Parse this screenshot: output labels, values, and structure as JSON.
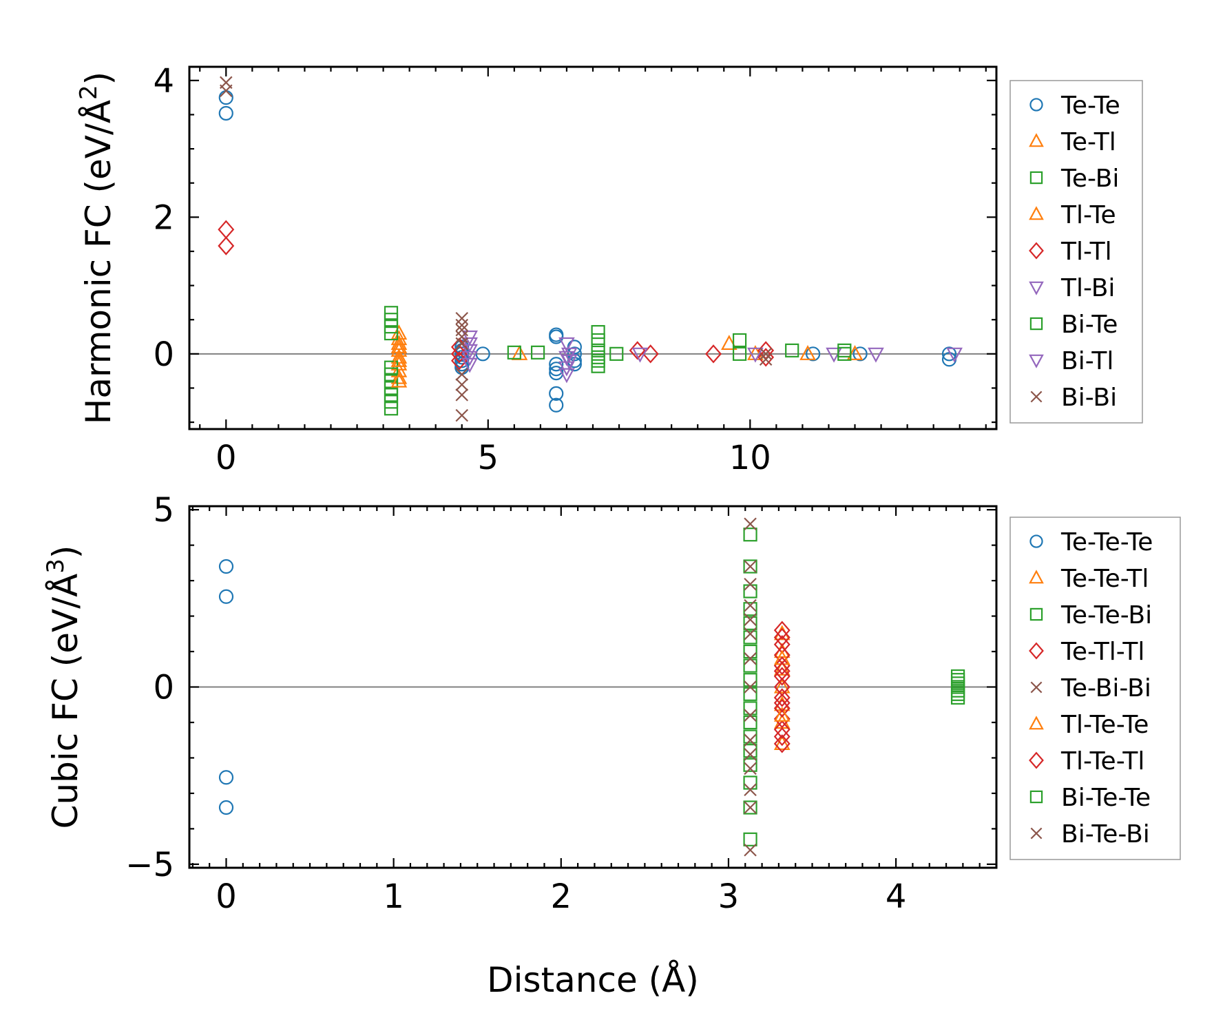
{
  "chart_data": [
    {
      "type": "scatter",
      "title": "",
      "xlabel": "",
      "ylabel": "Harmonic FC (eV/Å²)",
      "ylabel_main": "Harmonic FC (eV/Å",
      "ylabel_sup": "2",
      "ylabel_close": ")",
      "xlim": [
        -0.7,
        14.7
      ],
      "ylim": [
        -1.1,
        4.2
      ],
      "xticks": [
        0,
        5,
        10
      ],
      "xtick_labels": [
        "0",
        "5",
        "10"
      ],
      "yticks": [
        0,
        2,
        4
      ],
      "ytick_labels": [
        "0",
        "2",
        "4"
      ],
      "hline_y": 0,
      "legend_position": "outside-right",
      "legend": [
        {
          "label": "Te-Te",
          "marker": "circle",
          "color": "#1f77b4"
        },
        {
          "label": "Te-Tl",
          "marker": "triangle-up",
          "color": "#ff7f0e"
        },
        {
          "label": "Te-Bi",
          "marker": "square",
          "color": "#2ca02c"
        },
        {
          "label": "Tl-Te",
          "marker": "triangle-up",
          "color": "#ff7f0e"
        },
        {
          "label": "Tl-Tl",
          "marker": "diamond",
          "color": "#d62728"
        },
        {
          "label": "Tl-Bi",
          "marker": "triangle-down",
          "color": "#9467bd"
        },
        {
          "label": "Bi-Te",
          "marker": "square",
          "color": "#2ca02c"
        },
        {
          "label": "Bi-Tl",
          "marker": "triangle-down",
          "color": "#9467bd"
        },
        {
          "label": "Bi-Bi",
          "marker": "x",
          "color": "#8c564b"
        }
      ],
      "series": [
        {
          "name": "Te-Te",
          "marker": "circle",
          "color": "#1f77b4",
          "points": [
            [
              0,
              3.75
            ],
            [
              0,
              3.52
            ],
            [
              4.5,
              0.1
            ],
            [
              4.5,
              0.05
            ],
            [
              4.5,
              0.0
            ],
            [
              4.5,
              -0.05
            ],
            [
              4.5,
              -0.1
            ],
            [
              4.5,
              -0.15
            ],
            [
              4.5,
              -0.2
            ],
            [
              4.9,
              0.0
            ],
            [
              6.3,
              0.28
            ],
            [
              6.3,
              0.25
            ],
            [
              6.3,
              -0.15
            ],
            [
              6.3,
              -0.22
            ],
            [
              6.3,
              -0.28
            ],
            [
              6.3,
              -0.58
            ],
            [
              6.3,
              -0.75
            ],
            [
              6.65,
              0.1
            ],
            [
              6.65,
              0.0
            ],
            [
              6.65,
              -0.1
            ],
            [
              6.65,
              -0.15
            ],
            [
              11.2,
              0.0
            ],
            [
              12.1,
              0.0
            ],
            [
              13.8,
              0.0
            ],
            [
              13.8,
              -0.08
            ]
          ]
        },
        {
          "name": "Te-Tl",
          "marker": "triangle-up",
          "color": "#ff7f0e",
          "points": [
            [
              3.3,
              0.3
            ],
            [
              3.3,
              0.22
            ],
            [
              3.3,
              0.15
            ],
            [
              3.3,
              0.05
            ],
            [
              3.3,
              -0.05
            ],
            [
              3.3,
              -0.15
            ],
            [
              3.3,
              -0.25
            ],
            [
              3.3,
              -0.35
            ],
            [
              5.6,
              0.0
            ],
            [
              9.6,
              0.15
            ],
            [
              10.1,
              0.0
            ],
            [
              11.1,
              0.0
            ],
            [
              12.0,
              0.0
            ]
          ]
        },
        {
          "name": "Te-Bi",
          "marker": "square",
          "color": "#2ca02c",
          "points": [
            [
              3.15,
              0.6
            ],
            [
              3.15,
              0.5
            ],
            [
              3.15,
              0.4
            ],
            [
              3.15,
              0.3
            ],
            [
              3.15,
              -0.2
            ],
            [
              3.15,
              -0.3
            ],
            [
              3.15,
              -0.4
            ],
            [
              3.15,
              -0.5
            ],
            [
              3.15,
              -0.6
            ],
            [
              3.15,
              -0.7
            ],
            [
              3.15,
              -0.8
            ],
            [
              5.95,
              0.02
            ],
            [
              7.1,
              0.32
            ],
            [
              7.1,
              0.2
            ],
            [
              7.1,
              -0.05
            ],
            [
              9.8,
              0.2
            ],
            [
              9.8,
              0.0
            ],
            [
              10.8,
              0.05
            ]
          ]
        },
        {
          "name": "Tl-Te",
          "marker": "triangle-up",
          "color": "#ff7f0e",
          "points": [
            [
              3.3,
              0.1
            ],
            [
              3.3,
              -0.1
            ],
            [
              3.3,
              -0.4
            ]
          ]
        },
        {
          "name": "Tl-Tl",
          "marker": "diamond",
          "color": "#d62728",
          "points": [
            [
              0,
              1.82
            ],
            [
              0,
              1.58
            ],
            [
              4.45,
              0.1
            ],
            [
              4.45,
              0.0
            ],
            [
              4.45,
              -0.1
            ],
            [
              7.85,
              0.05
            ],
            [
              8.1,
              0.0
            ],
            [
              9.3,
              0.0
            ],
            [
              10.3,
              0.05
            ],
            [
              10.3,
              -0.05
            ]
          ]
        },
        {
          "name": "Tl-Bi",
          "marker": "triangle-down",
          "color": "#9467bd",
          "points": [
            [
              4.65,
              0.25
            ],
            [
              4.65,
              0.15
            ],
            [
              4.65,
              0.05
            ],
            [
              4.65,
              -0.05
            ],
            [
              4.65,
              -0.15
            ],
            [
              6.5,
              0.15
            ],
            [
              6.5,
              -0.05
            ],
            [
              6.5,
              -0.2
            ],
            [
              6.5,
              -0.3
            ],
            [
              7.9,
              0.0
            ],
            [
              11.6,
              0.0
            ],
            [
              12.4,
              0.0
            ],
            [
              13.9,
              0.0
            ]
          ]
        },
        {
          "name": "Bi-Te",
          "marker": "square",
          "color": "#2ca02c",
          "points": [
            [
              5.5,
              0.02
            ],
            [
              7.1,
              0.05
            ],
            [
              7.1,
              -0.1
            ],
            [
              7.1,
              -0.18
            ],
            [
              7.45,
              0.0
            ],
            [
              11.8,
              0.05
            ],
            [
              11.8,
              0.0
            ]
          ]
        },
        {
          "name": "Bi-Tl",
          "marker": "triangle-down",
          "color": "#9467bd",
          "points": [
            [
              6.55,
              0.0
            ],
            [
              6.55,
              -0.1
            ],
            [
              10.1,
              0.0
            ]
          ]
        },
        {
          "name": "Bi-Bi",
          "marker": "x",
          "color": "#8c564b",
          "points": [
            [
              0,
              3.97
            ],
            [
              0,
              3.85
            ],
            [
              4.5,
              0.52
            ],
            [
              4.5,
              0.42
            ],
            [
              4.5,
              0.35
            ],
            [
              4.5,
              0.25
            ],
            [
              4.5,
              0.15
            ],
            [
              4.5,
              -0.3
            ],
            [
              4.5,
              -0.45
            ],
            [
              4.5,
              -0.6
            ],
            [
              4.5,
              -0.9
            ],
            [
              10.3,
              0.0
            ],
            [
              10.3,
              -0.08
            ]
          ]
        }
      ]
    },
    {
      "type": "scatter",
      "title": "",
      "xlabel": "Distance (Å)",
      "ylabel": "Cubic FC (eV/Å³)",
      "ylabel_main": "Cubic FC (eV/Å",
      "ylabel_sup": "3",
      "ylabel_close": ")",
      "xlim": [
        -0.22,
        4.6
      ],
      "ylim": [
        -5.1,
        5.1
      ],
      "xticks": [
        0,
        1,
        2,
        3,
        4
      ],
      "xtick_labels": [
        "0",
        "1",
        "2",
        "3",
        "4"
      ],
      "yticks": [
        -5,
        0,
        5
      ],
      "ytick_labels": [
        "−5",
        "0",
        "5"
      ],
      "hline_y": 0,
      "legend_position": "outside-right",
      "legend": [
        {
          "label": "Te-Te-Te",
          "marker": "circle",
          "color": "#1f77b4"
        },
        {
          "label": "Te-Te-Tl",
          "marker": "triangle-up",
          "color": "#ff7f0e"
        },
        {
          "label": "Te-Te-Bi",
          "marker": "square",
          "color": "#2ca02c"
        },
        {
          "label": "Te-Tl-Tl",
          "marker": "diamond",
          "color": "#d62728"
        },
        {
          "label": "Te-Bi-Bi",
          "marker": "x",
          "color": "#8c564b"
        },
        {
          "label": "Tl-Te-Te",
          "marker": "triangle-up",
          "color": "#ff7f0e"
        },
        {
          "label": "Tl-Te-Tl",
          "marker": "diamond",
          "color": "#d62728"
        },
        {
          "label": "Bi-Te-Te",
          "marker": "square",
          "color": "#2ca02c"
        },
        {
          "label": "Bi-Te-Bi",
          "marker": "x",
          "color": "#8c564b"
        }
      ],
      "series": [
        {
          "name": "Te-Te-Te",
          "marker": "circle",
          "color": "#1f77b4",
          "points": [
            [
              0,
              3.4
            ],
            [
              0,
              2.55
            ],
            [
              0,
              -2.55
            ],
            [
              0,
              -3.4
            ]
          ]
        },
        {
          "name": "Te-Te-Tl",
          "marker": "triangle-up",
          "color": "#ff7f0e",
          "points": [
            [
              3.32,
              1.5
            ],
            [
              3.32,
              1.0
            ],
            [
              3.32,
              0.5
            ],
            [
              3.32,
              0.0
            ],
            [
              3.32,
              -0.5
            ],
            [
              3.32,
              -1.0
            ],
            [
              3.32,
              -1.6
            ]
          ]
        },
        {
          "name": "Te-Te-Bi",
          "marker": "square",
          "color": "#2ca02c",
          "points": [
            [
              3.13,
              4.3
            ],
            [
              3.13,
              3.4
            ],
            [
              3.13,
              2.7
            ],
            [
              3.13,
              2.2
            ],
            [
              3.13,
              1.8
            ],
            [
              3.13,
              1.4
            ],
            [
              3.13,
              1.0
            ],
            [
              3.13,
              0.6
            ],
            [
              3.13,
              0.2
            ],
            [
              3.13,
              -0.2
            ],
            [
              3.13,
              -0.6
            ],
            [
              3.13,
              -1.0
            ],
            [
              3.13,
              -1.4
            ],
            [
              3.13,
              -1.8
            ],
            [
              3.13,
              -2.2
            ],
            [
              3.13,
              -2.7
            ],
            [
              3.13,
              -3.4
            ],
            [
              3.13,
              -4.3
            ]
          ]
        },
        {
          "name": "Te-Tl-Tl",
          "marker": "diamond",
          "color": "#d62728",
          "points": [
            [
              3.32,
              1.6
            ],
            [
              3.32,
              1.2
            ],
            [
              3.32,
              0.9
            ],
            [
              3.32,
              0.6
            ],
            [
              3.32,
              0.3
            ],
            [
              3.32,
              0.0
            ],
            [
              3.32,
              -0.3
            ],
            [
              3.32,
              -0.6
            ],
            [
              3.32,
              -0.9
            ],
            [
              3.32,
              -1.2
            ],
            [
              3.32,
              -1.6
            ]
          ]
        },
        {
          "name": "Te-Bi-Bi",
          "marker": "x",
          "color": "#8c564b",
          "points": [
            [
              3.13,
              4.6
            ],
            [
              3.13,
              2.9
            ],
            [
              3.13,
              2.3
            ],
            [
              3.13,
              1.5
            ],
            [
              3.13,
              0.8
            ],
            [
              3.13,
              0.0
            ],
            [
              3.13,
              -0.8
            ],
            [
              3.13,
              -1.5
            ],
            [
              3.13,
              -2.3
            ],
            [
              3.13,
              -2.9
            ],
            [
              3.13,
              -4.6
            ]
          ]
        },
        {
          "name": "Tl-Te-Te",
          "marker": "triangle-up",
          "color": "#ff7f0e",
          "points": [
            [
              3.32,
              0.8
            ],
            [
              3.32,
              -0.8
            ]
          ]
        },
        {
          "name": "Tl-Te-Tl",
          "marker": "diamond",
          "color": "#d62728",
          "points": [
            [
              3.32,
              1.4
            ],
            [
              3.32,
              0.45
            ],
            [
              3.32,
              -0.45
            ],
            [
              3.32,
              -1.4
            ]
          ]
        },
        {
          "name": "Bi-Te-Te",
          "marker": "square",
          "color": "#2ca02c",
          "points": [
            [
              4.37,
              0.3
            ],
            [
              4.37,
              0.2
            ],
            [
              4.37,
              0.1
            ],
            [
              4.37,
              0.0
            ],
            [
              4.37,
              -0.1
            ],
            [
              4.37,
              -0.2
            ],
            [
              4.37,
              -0.3
            ]
          ]
        },
        {
          "name": "Bi-Te-Bi",
          "marker": "x",
          "color": "#8c564b",
          "points": [
            [
              3.13,
              3.4
            ],
            [
              3.13,
              -3.4
            ],
            [
              3.13,
              1.9
            ],
            [
              3.13,
              -1.9
            ]
          ]
        }
      ]
    }
  ]
}
